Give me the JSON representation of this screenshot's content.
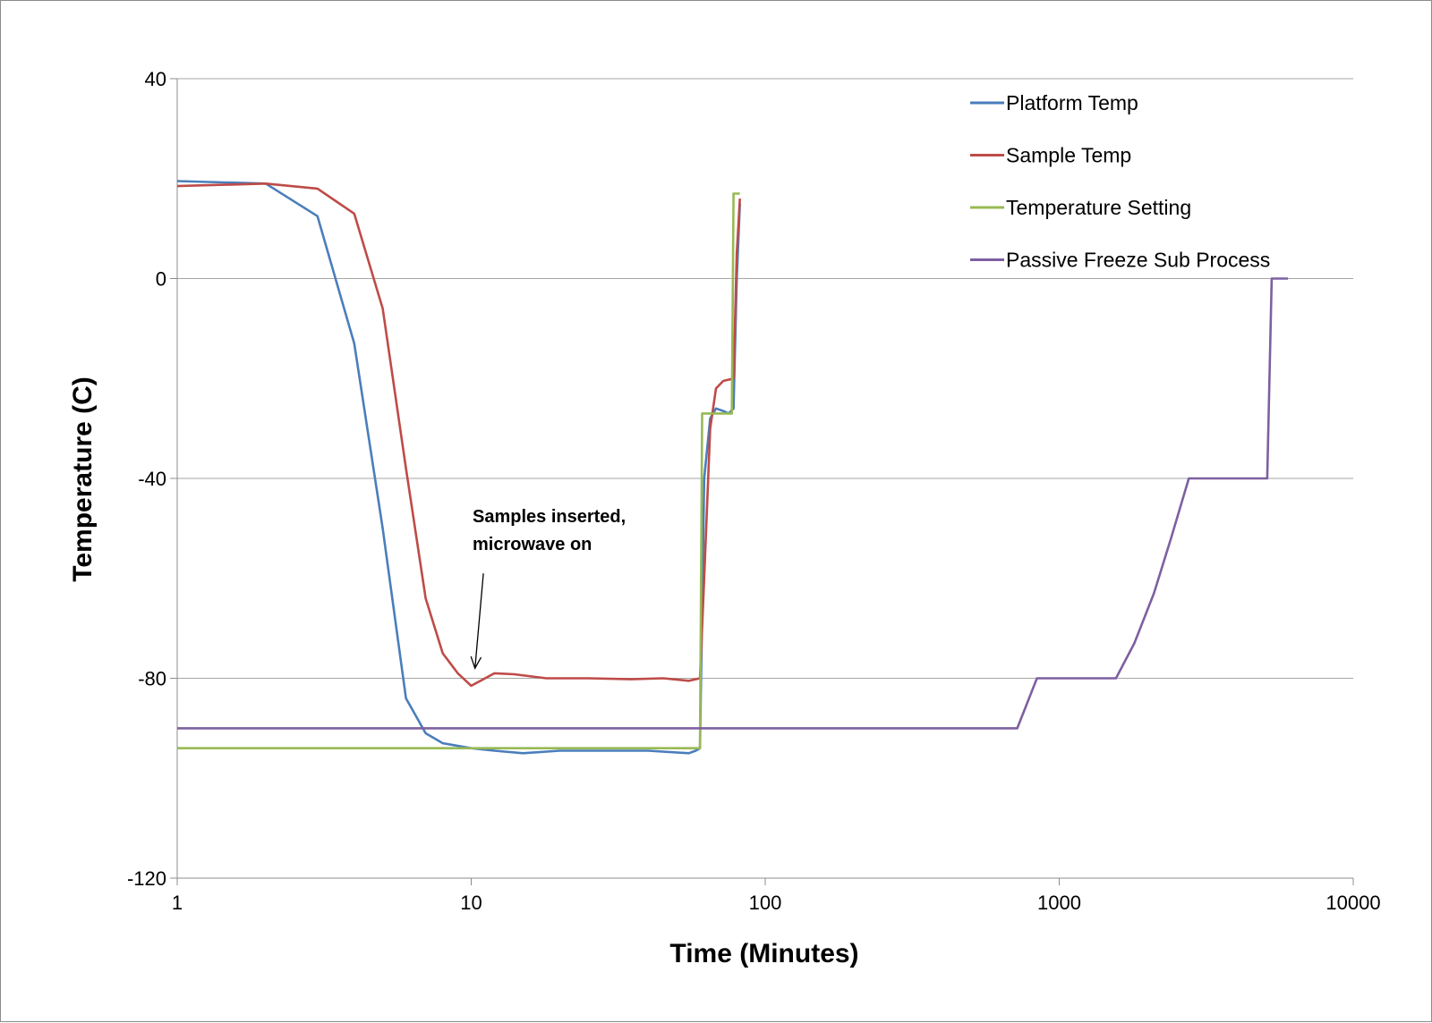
{
  "chart_data": {
    "type": "line",
    "title": "",
    "xlabel": "Time (Minutes)",
    "ylabel": "Temperature (C)",
    "x_scale": "log",
    "xlim": [
      1,
      10000
    ],
    "ylim": [
      -120,
      40
    ],
    "x_ticks": [
      "1",
      "10",
      "100",
      "1000",
      "10000"
    ],
    "y_ticks": [
      "40",
      "0",
      "-40",
      "-80",
      "-120"
    ],
    "x_tick_values": [
      1,
      10,
      100,
      1000,
      10000
    ],
    "y_tick_values": [
      40,
      0,
      -40,
      -80,
      -120
    ],
    "grid": "horizontal",
    "legend_position": "top-right",
    "annotation": {
      "lines": [
        "Samples inserted,",
        "microwave on"
      ],
      "arrow_from": [
        11,
        -59
      ],
      "arrow_to": [
        10.3,
        -78
      ]
    },
    "series": [
      {
        "name": "Platform Temp",
        "color": "#4a7ebb",
        "points": [
          [
            1,
            19.5
          ],
          [
            2,
            19
          ],
          [
            3,
            12.5
          ],
          [
            4,
            -13
          ],
          [
            5,
            -50
          ],
          [
            6,
            -84
          ],
          [
            7,
            -91
          ],
          [
            8,
            -93
          ],
          [
            10,
            -94
          ],
          [
            12,
            -94.5
          ],
          [
            15,
            -95
          ],
          [
            20,
            -94.5
          ],
          [
            30,
            -94.5
          ],
          [
            40,
            -94.5
          ],
          [
            55,
            -95
          ],
          [
            58,
            -94.5
          ],
          [
            60,
            -94
          ],
          [
            62,
            -40
          ],
          [
            65,
            -28
          ],
          [
            68,
            -26
          ],
          [
            72,
            -26.5
          ],
          [
            75,
            -27
          ],
          [
            78,
            -26
          ],
          [
            80,
            0
          ],
          [
            82,
            15
          ]
        ]
      },
      {
        "name": "Sample Temp",
        "color": "#be4b48",
        "points": [
          [
            1,
            18.5
          ],
          [
            2,
            19
          ],
          [
            3,
            18
          ],
          [
            4,
            13
          ],
          [
            5,
            -6
          ],
          [
            6,
            -38
          ],
          [
            7,
            -64
          ],
          [
            8,
            -75
          ],
          [
            9,
            -79
          ],
          [
            10,
            -81.5
          ],
          [
            12,
            -79
          ],
          [
            14,
            -79.2
          ],
          [
            18,
            -80
          ],
          [
            25,
            -80
          ],
          [
            35,
            -80.2
          ],
          [
            45,
            -80
          ],
          [
            55,
            -80.5
          ],
          [
            60,
            -80
          ],
          [
            62,
            -60
          ],
          [
            65,
            -30
          ],
          [
            68,
            -22
          ],
          [
            72,
            -20.5
          ],
          [
            78,
            -20
          ],
          [
            80,
            5
          ],
          [
            82,
            16
          ]
        ]
      },
      {
        "name": "Temperature Setting",
        "color": "#98b954",
        "points": [
          [
            1,
            -94
          ],
          [
            60,
            -94
          ],
          [
            61,
            -27
          ],
          [
            77,
            -27
          ],
          [
            78,
            17
          ],
          [
            82,
            17
          ]
        ]
      },
      {
        "name": "Passive Freeze Sub Process",
        "color": "#7d60a0",
        "points": [
          [
            1,
            -90
          ],
          [
            720,
            -90
          ],
          [
            840,
            -80
          ],
          [
            1560,
            -80
          ],
          [
            1800,
            -73
          ],
          [
            2100,
            -63
          ],
          [
            2400,
            -52
          ],
          [
            2760,
            -40
          ],
          [
            5100,
            -40
          ],
          [
            5280,
            0
          ],
          [
            6000,
            0
          ]
        ]
      }
    ]
  }
}
